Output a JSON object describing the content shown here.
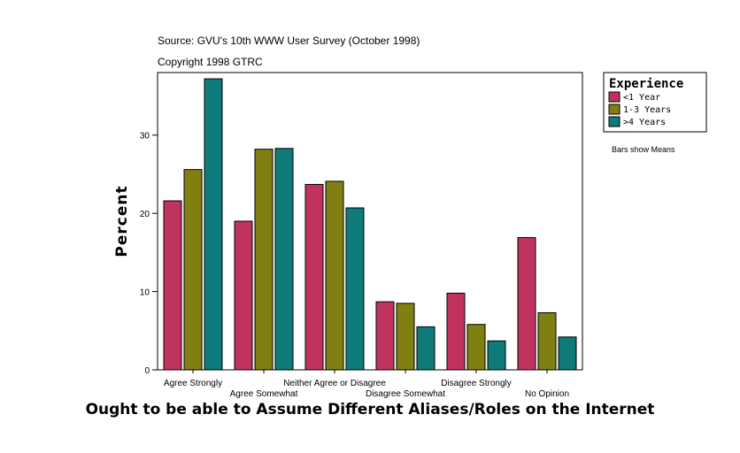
{
  "source_line": "Source: GVU's 10th WWW User Survey (October 1998)",
  "copyright_line": "Copyright 1998 GTRC",
  "note": "Bars show Means",
  "chart_data": {
    "type": "bar",
    "title": "Ought to be able to Assume Different Aliases/Roles on the Internet",
    "ylabel": "Percent",
    "xlabel": "",
    "ylim": [
      0,
      38
    ],
    "yticks": [
      0,
      10,
      20,
      30
    ],
    "grid": false,
    "legend_title": "Experience",
    "legend_position": "top-right",
    "categories": [
      "Agree Strongly",
      "Agree Somewhat",
      "Neither Agree or Disagree",
      "Disagree Somewhat",
      "Disagree Strongly",
      "No Opinion"
    ],
    "series": [
      {
        "name": "<1 Year",
        "color": "#c0335f",
        "values": [
          21.6,
          19.0,
          23.7,
          8.7,
          9.8,
          16.9
        ]
      },
      {
        "name": "1-3 Years",
        "color": "#808012",
        "values": [
          25.6,
          28.2,
          24.1,
          8.5,
          5.8,
          7.3
        ]
      },
      {
        "name": ">4 Years",
        "color": "#0f7a7a",
        "values": [
          37.2,
          28.3,
          20.7,
          5.5,
          3.7,
          4.2
        ]
      }
    ]
  }
}
